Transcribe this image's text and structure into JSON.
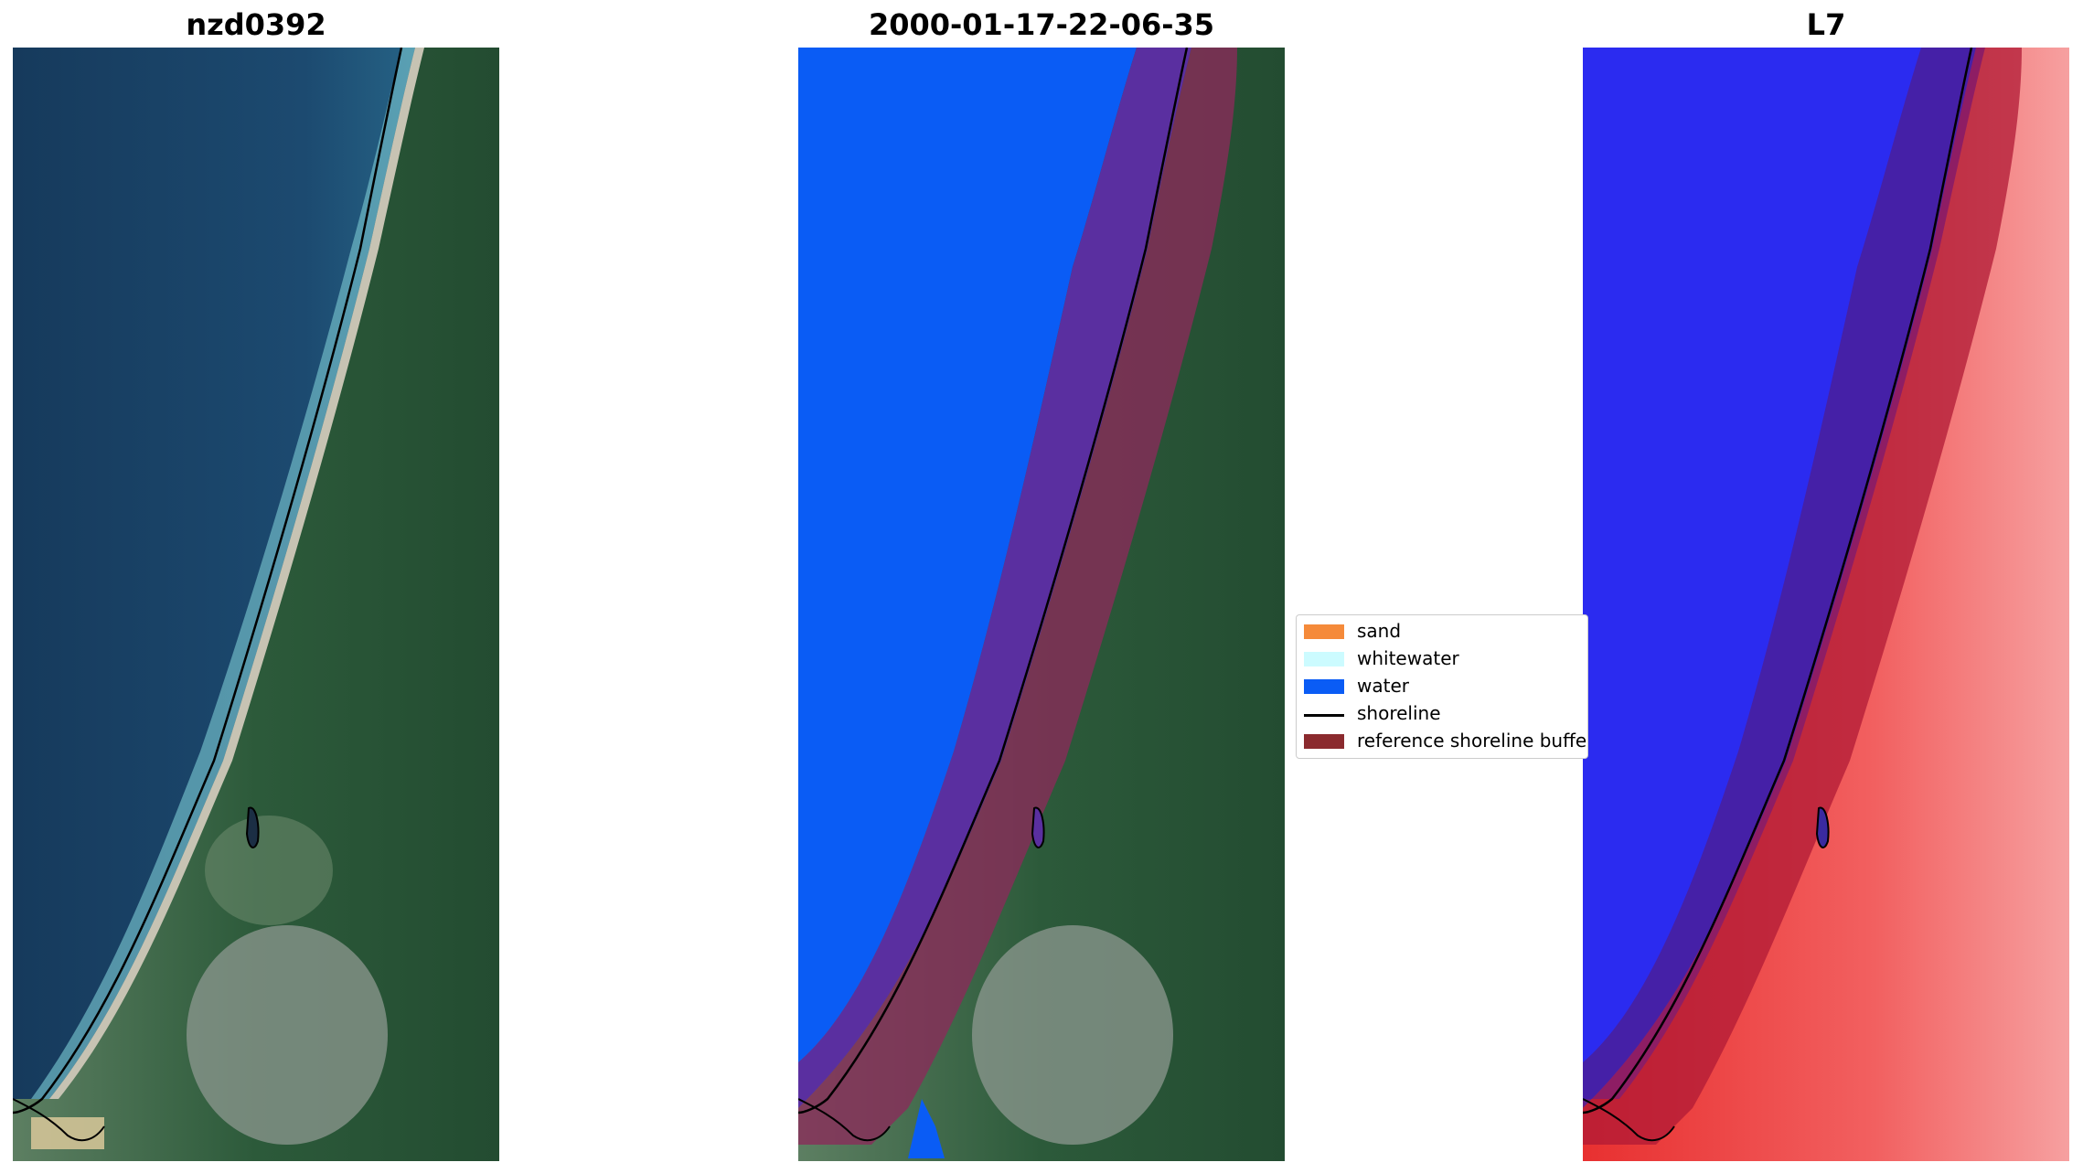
{
  "panels": [
    {
      "title": "nzd0392"
    },
    {
      "title": "2000-01-17-22-06-35"
    },
    {
      "title": "L7"
    }
  ],
  "legend": {
    "items": [
      {
        "label": "sand",
        "color": "#f58a3a",
        "kind": "patch"
      },
      {
        "label": "whitewater",
        "color": "#ccfbff",
        "kind": "patch"
      },
      {
        "label": "water",
        "color": "#0a5cf5",
        "kind": "patch"
      },
      {
        "label": "shoreline",
        "color": "#000000",
        "kind": "line"
      },
      {
        "label": "reference shoreline buffer",
        "color": "#8b2a2e",
        "kind": "patch"
      }
    ]
  },
  "colors": {
    "ocean_deep": "#183f62",
    "ocean_near": "#2f7a9a",
    "surf": "#7cc4cf",
    "beach": "#c7c3b3",
    "vegetation": "#2c5a3a",
    "urban": "#8e9890",
    "water_class": "#0a5cf5",
    "buffer_overlay": "#8b2a5a",
    "index_water": "#2b2bf0",
    "index_land": "#f04545"
  }
}
